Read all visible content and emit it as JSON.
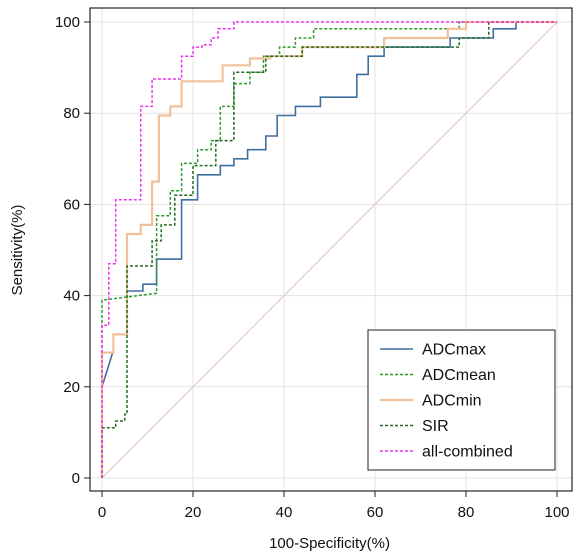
{
  "chart_data": {
    "type": "line",
    "title": "",
    "xlabel": "100-Specificity(%)",
    "ylabel": "Sensitivity(%)",
    "xlim": [
      0,
      100
    ],
    "ylim": [
      0,
      100
    ],
    "xticks": [
      0,
      20,
      40,
      60,
      80,
      100
    ],
    "yticks": [
      0,
      20,
      40,
      60,
      80,
      100
    ],
    "grid": true,
    "legend_position": "bottom-right",
    "reference_line": {
      "x": [
        0,
        100
      ],
      "y": [
        0,
        100
      ],
      "color": "#e6c9c0"
    },
    "series": [
      {
        "name": "ADCmax",
        "color": "#3f6fa0",
        "dash": "solid",
        "x": [
          0,
          0,
          2.5,
          2.5,
          5.5,
          5.5,
          9,
          9,
          12,
          12,
          17.5,
          17.5,
          21,
          21,
          26,
          26,
          29,
          29,
          32,
          32,
          36,
          36,
          38.5,
          38.5,
          42.5,
          42.5,
          48,
          48,
          56,
          56,
          58.5,
          58.5,
          62,
          62,
          65,
          65,
          76.5,
          76.5,
          78.5,
          78.5,
          86,
          86,
          91,
          91,
          100
        ],
        "y": [
          0,
          20,
          28,
          31.5,
          31.5,
          41,
          41,
          42.5,
          42.5,
          48,
          48,
          61,
          61,
          66.5,
          66.5,
          68.5,
          68.5,
          70,
          70,
          72,
          72,
          75,
          75,
          79.5,
          79.5,
          81.5,
          81.5,
          83.5,
          83.5,
          88.5,
          88.5,
          92.5,
          92.5,
          94.5,
          94.5,
          94.5,
          94.5,
          96.5,
          96.5,
          96.5,
          96.5,
          98.5,
          98.5,
          100,
          100
        ]
      },
      {
        "name": "ADCmean",
        "color": "#2e9a2e",
        "dash": "dashed",
        "x": [
          0,
          0,
          12,
          12,
          15,
          15,
          17.5,
          17.5,
          21,
          21,
          24,
          24,
          26,
          26,
          29,
          29,
          32.5,
          32.5,
          35.5,
          35.5,
          39,
          39,
          42.5,
          42.5,
          46.5,
          46.5,
          68.5,
          68.5,
          78.5,
          78.5,
          100
        ],
        "y": [
          0,
          39,
          40.5,
          57.5,
          57.5,
          63,
          63,
          69,
          69,
          72,
          72,
          74,
          74,
          81.5,
          81.5,
          86.5,
          86.5,
          89,
          89,
          92.5,
          92.5,
          94.5,
          94.5,
          96.5,
          96.5,
          98.5,
          98.5,
          98.5,
          98.5,
          100,
          100
        ]
      },
      {
        "name": "ADCmin",
        "color": "#f1c29a",
        "dash": "solid",
        "x": [
          0,
          0,
          2.5,
          2.5,
          5.5,
          5.5,
          8.5,
          8.5,
          11,
          11,
          12.5,
          12.5,
          15,
          15,
          17.5,
          17.5,
          23,
          23,
          26.5,
          26.5,
          29,
          29,
          32.5,
          32.5,
          37,
          37,
          44,
          44,
          62,
          62,
          76,
          76,
          80,
          80,
          100
        ],
        "y": [
          0,
          27.5,
          27.5,
          31.5,
          31.5,
          53.5,
          53.5,
          55.5,
          55.5,
          65,
          65,
          79.5,
          79.5,
          81.5,
          81.5,
          87,
          87,
          87,
          87,
          90.5,
          90.5,
          90.5,
          90.5,
          92,
          92,
          92.5,
          92.5,
          94.5,
          94.5,
          96.5,
          96.5,
          98.5,
          98.5,
          100,
          100
        ]
      },
      {
        "name": "SIR",
        "color": "#1f6b1f",
        "dash": "dashed",
        "x": [
          0,
          0,
          3,
          3,
          5,
          5,
          5.5,
          5.5,
          11,
          11,
          13,
          13,
          16,
          16,
          20,
          20,
          25,
          25,
          29,
          29,
          36,
          36,
          44,
          44,
          62,
          62,
          78.5,
          78.5,
          85,
          85,
          100
        ],
        "y": [
          0,
          11,
          11,
          12.5,
          12.5,
          14,
          14,
          46.5,
          46.5,
          52,
          52,
          55.5,
          55.5,
          62,
          62,
          68.5,
          68.5,
          74,
          74,
          89,
          89,
          92.5,
          92.5,
          94.5,
          94.5,
          94.5,
          94.5,
          96.5,
          96.5,
          100,
          100
        ]
      },
      {
        "name": "all-combined",
        "color": "#ee33ee",
        "dash": "dashed",
        "x": [
          0,
          0,
          1.5,
          1.5,
          3,
          3,
          8.5,
          8.5,
          11,
          11,
          17.5,
          17.5,
          20,
          20,
          22,
          22,
          24,
          24,
          25.5,
          25.5,
          28,
          28,
          29,
          29,
          100
        ],
        "y": [
          0,
          33.5,
          33.5,
          47,
          47,
          61,
          61,
          81.5,
          81.5,
          87.5,
          87.5,
          92.5,
          92.5,
          94.5,
          94.5,
          95,
          95,
          96.5,
          96.5,
          98.5,
          98.5,
          98.5,
          98.5,
          100,
          100
        ]
      }
    ]
  }
}
